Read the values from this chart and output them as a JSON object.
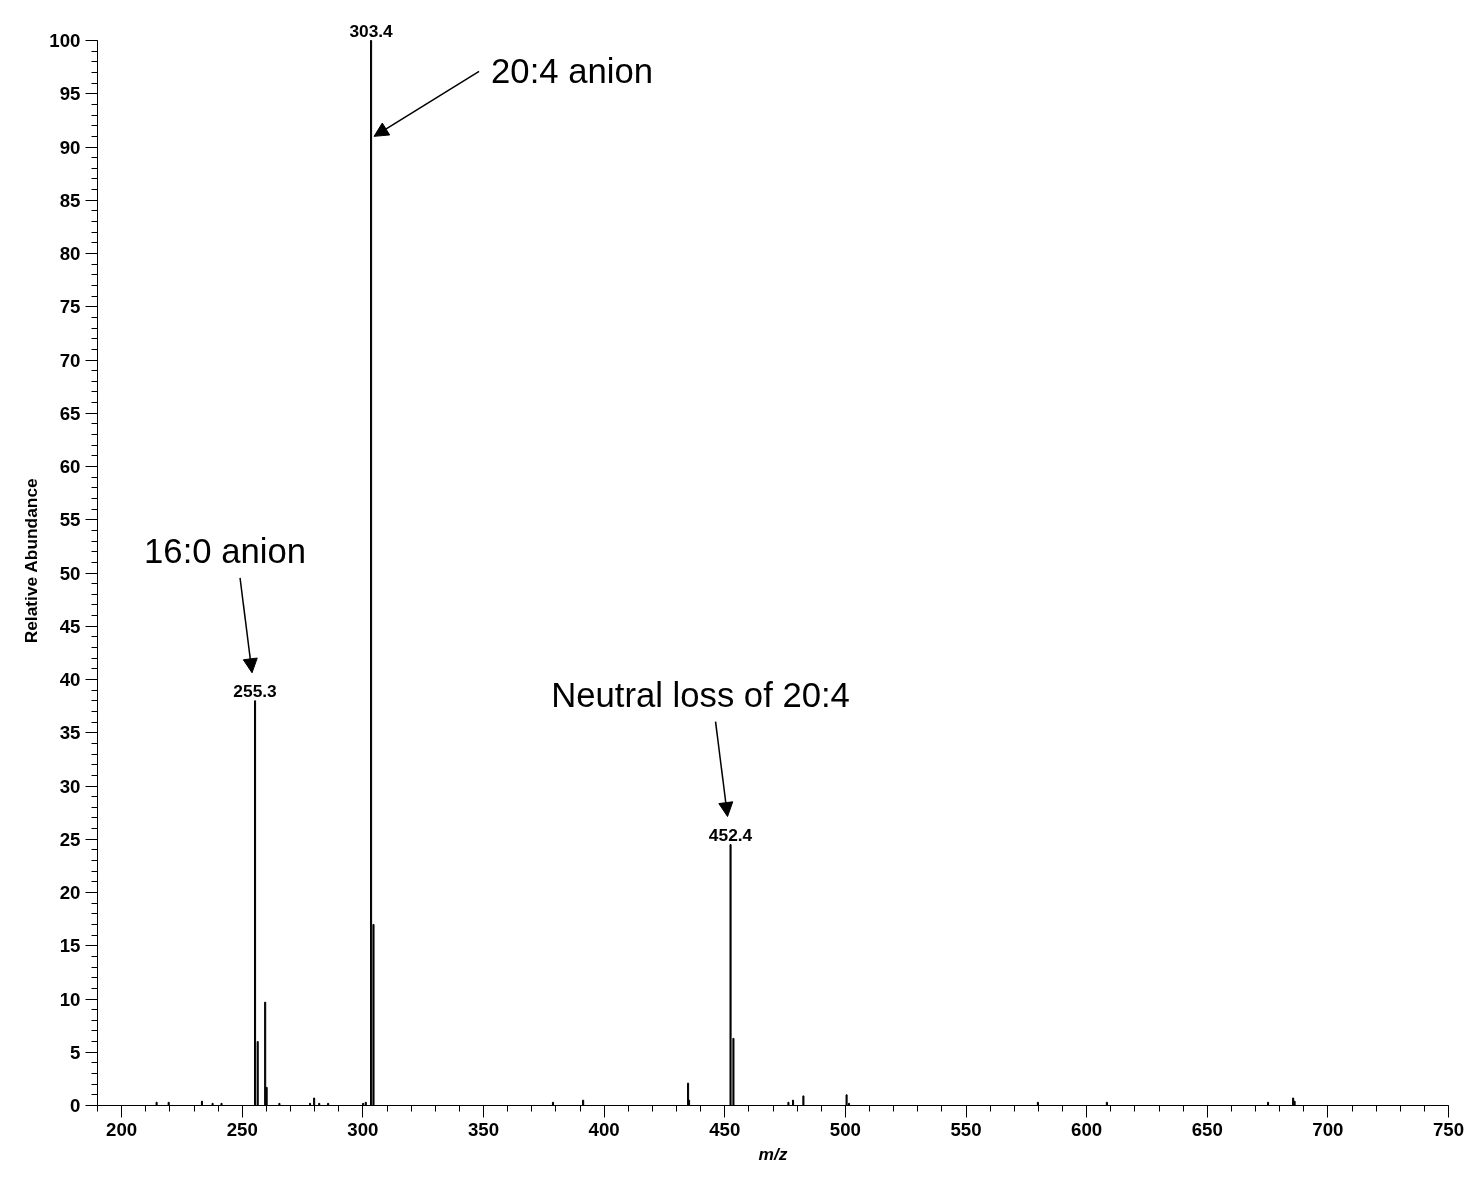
{
  "chart_data": {
    "type": "bar",
    "xlabel": "m/z",
    "ylabel": "Relative Abundance",
    "x": [
      214.5,
      219.5,
      233.3,
      237.7,
      241.4,
      255.3,
      256.4,
      259.5,
      260.1,
      265.4,
      278.1,
      279.8,
      281.9,
      285.6,
      300.1,
      301.2,
      303.4,
      304.4,
      378.8,
      391.3,
      434.8,
      435.2,
      452.4,
      453.6,
      476.4,
      478.3,
      482.6,
      500.5,
      501.5,
      579.8,
      608.4,
      675.2,
      685.6,
      686.2
    ],
    "values": [
      0.3,
      0.3,
      0.4,
      0.2,
      0.2,
      38,
      6.0,
      9.7,
      1.7,
      0.2,
      0.2,
      0.7,
      0.2,
      0.2,
      0.2,
      0.3,
      100,
      17,
      0.3,
      0.5,
      2.1,
      0.5,
      24.5,
      6.3,
      0.3,
      0.5,
      0.9,
      1.0,
      0.2,
      0.3,
      0.3,
      0.3,
      0.7,
      0.4
    ],
    "color": "#000000",
    "xlim": [
      190,
      750
    ],
    "xticks": [
      200,
      250,
      300,
      350,
      400,
      450,
      500,
      550,
      600,
      650,
      700,
      750
    ],
    "ylim": [
      0,
      100
    ],
    "yticks": [
      0,
      5,
      10,
      15,
      20,
      25,
      30,
      35,
      40,
      45,
      50,
      55,
      60,
      65,
      70,
      75,
      80,
      85,
      90,
      95,
      100
    ],
    "grid": false,
    "annotations": [
      {
        "text": "255.3",
        "x": 255.3,
        "y": 38
      },
      "16:0 anion",
      {
        "text": "303.4",
        "x": 303.4,
        "y": 100
      },
      {
        "text": "20:4 anion",
        "x": 303.4,
        "y": 91
      },
      {
        "text": "452.4",
        "x": 452.4,
        "y": 24.5
      },
      "Neutral loss of 20:4"
    ]
  }
}
